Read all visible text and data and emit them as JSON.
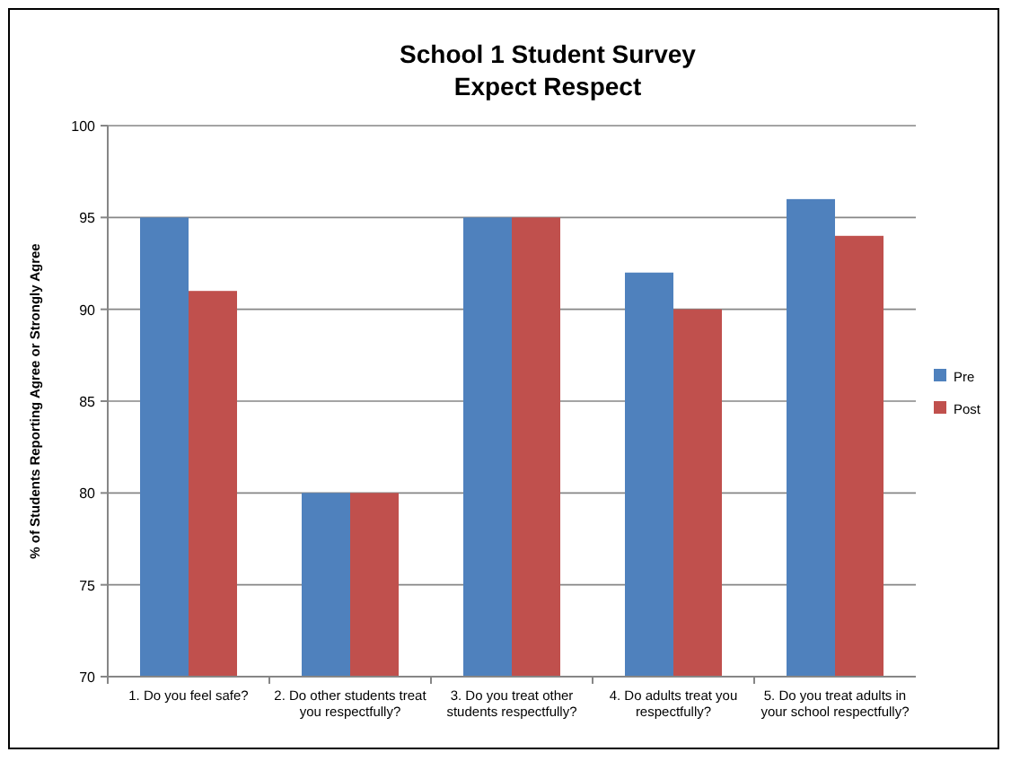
{
  "chart_data": {
    "type": "bar",
    "title": "School 1 Student Survey",
    "subtitle": "Expect Respect",
    "ylabel": "% of Students Reporting Agree or Strongly Agree",
    "categories": [
      "1. Do you feel safe?",
      "2. Do other students treat you respectfully?",
      "3. Do you treat other students respectfully?",
      "4. Do adults treat you respectfully?",
      "5. Do you treat adults in your school respectfully?"
    ],
    "series": [
      {
        "name": "Pre",
        "color": "#4f81bd",
        "values": [
          95,
          80,
          95,
          92,
          96
        ]
      },
      {
        "name": "Post",
        "color": "#c0504d",
        "values": [
          91,
          80,
          95,
          90,
          94
        ]
      }
    ],
    "ylim": [
      70,
      100
    ],
    "yticks": [
      70,
      75,
      80,
      85,
      90,
      95,
      100
    ],
    "grid": "y",
    "legend": "right"
  }
}
